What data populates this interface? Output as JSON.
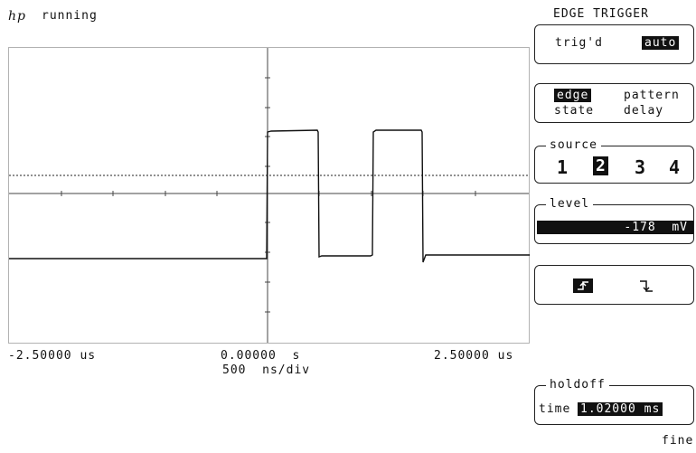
{
  "header": {
    "logo": "hp",
    "status": "running"
  },
  "display": {
    "time_left": "-2.50000 us",
    "time_center": "0.00000  s",
    "time_right": "2.50000 us",
    "timebase": "500  ns/div"
  },
  "menu": {
    "title": "EDGE TRIGGER",
    "mode": {
      "trigd": "trig'd",
      "auto": "auto"
    },
    "trigger_types": {
      "edge": "edge",
      "pattern": "pattern",
      "state": "state",
      "delay": "delay"
    },
    "source": {
      "label": "source",
      "options": [
        "1",
        "2",
        "3",
        "4"
      ],
      "selected": "2"
    },
    "level": {
      "label": "level",
      "value": "-178  mV"
    },
    "slope": {
      "rising": "rising-edge-icon",
      "falling": "falling-edge-icon",
      "selected": "rising"
    },
    "holdoff": {
      "label": "holdoff",
      "time_label": "time",
      "value": "1.02000 ms"
    },
    "footer": "fine"
  }
}
